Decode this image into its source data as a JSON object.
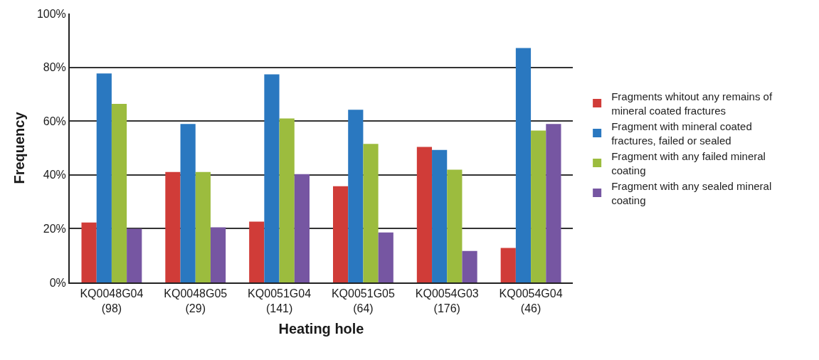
{
  "chart_data": {
    "type": "bar",
    "xlabel": "Heating hole",
    "ylabel": "Frequency",
    "categories": [
      "KQ0048G04\n(98)",
      "KQ0048G05\n(29)",
      "KQ0051G04\n(141)",
      "KQ0051G05\n(64)",
      "KQ0054G03\n(176)",
      "KQ0054G04\n(46)"
    ],
    "series": [
      {
        "name": "Fragments whitout any remains of mineral coated fractures",
        "color": "#d03c38",
        "values": [
          22.3,
          41.1,
          22.6,
          35.8,
          50.4,
          12.8
        ]
      },
      {
        "name": "Fragment with mineral coated fractures, failed or sealed",
        "color": "#2a78c0",
        "values": [
          77.7,
          58.9,
          77.4,
          64.2,
          49.3,
          87.2
        ]
      },
      {
        "name": "Fragment with any failed mineral coating",
        "color": "#9cbc3e",
        "values": [
          66.4,
          41.1,
          61,
          51.5,
          41.9,
          56.5
        ]
      },
      {
        "name": "Fragment with any sealed mineral coating",
        "color": "#7656a2",
        "values": [
          20,
          20.5,
          40.3,
          18.6,
          11.7,
          58.9
        ]
      }
    ],
    "ylim": [
      0,
      100
    ],
    "yticks": [
      {
        "value": 0,
        "label": "0%"
      },
      {
        "value": 20,
        "label": "20%"
      },
      {
        "value": 40,
        "label": "40%"
      },
      {
        "value": 60,
        "label": "60%"
      },
      {
        "value": 80,
        "label": "80%"
      },
      {
        "value": 100,
        "label": "100%"
      }
    ],
    "grid": "y",
    "legend": "right"
  }
}
